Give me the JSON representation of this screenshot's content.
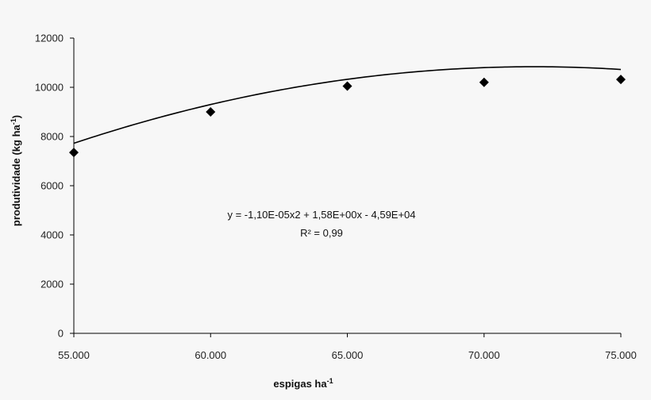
{
  "chart_data": {
    "type": "scatter",
    "x": [
      55000,
      60000,
      65000,
      70000,
      75000
    ],
    "y": [
      7350,
      9000,
      10050,
      10200,
      10320
    ],
    "trendline": {
      "type": "polynomial",
      "order": 2,
      "a": -1.1e-05,
      "b": 1.58,
      "c": -45900
    },
    "xlim": [
      55000,
      75000
    ],
    "ylim": [
      0,
      12000
    ],
    "xticks": [
      "55.000",
      "60.000",
      "65.000",
      "70.000",
      "75.000"
    ],
    "yticks": [
      "0",
      "2000",
      "4000",
      "6000",
      "8000",
      "10000",
      "12000"
    ],
    "xlabel": "espigas ha",
    "xlabel_sup": "-1",
    "ylabel": "produtividade (kg ha",
    "ylabel_sup": "-1",
    "ylabel_end": ")",
    "equation": "y = -1,10E-05x2 + 1,58E+00x - 4,59E+04",
    "r2": "R² = 0,99",
    "grid": false,
    "marker": "diamond",
    "color": "#000000"
  }
}
